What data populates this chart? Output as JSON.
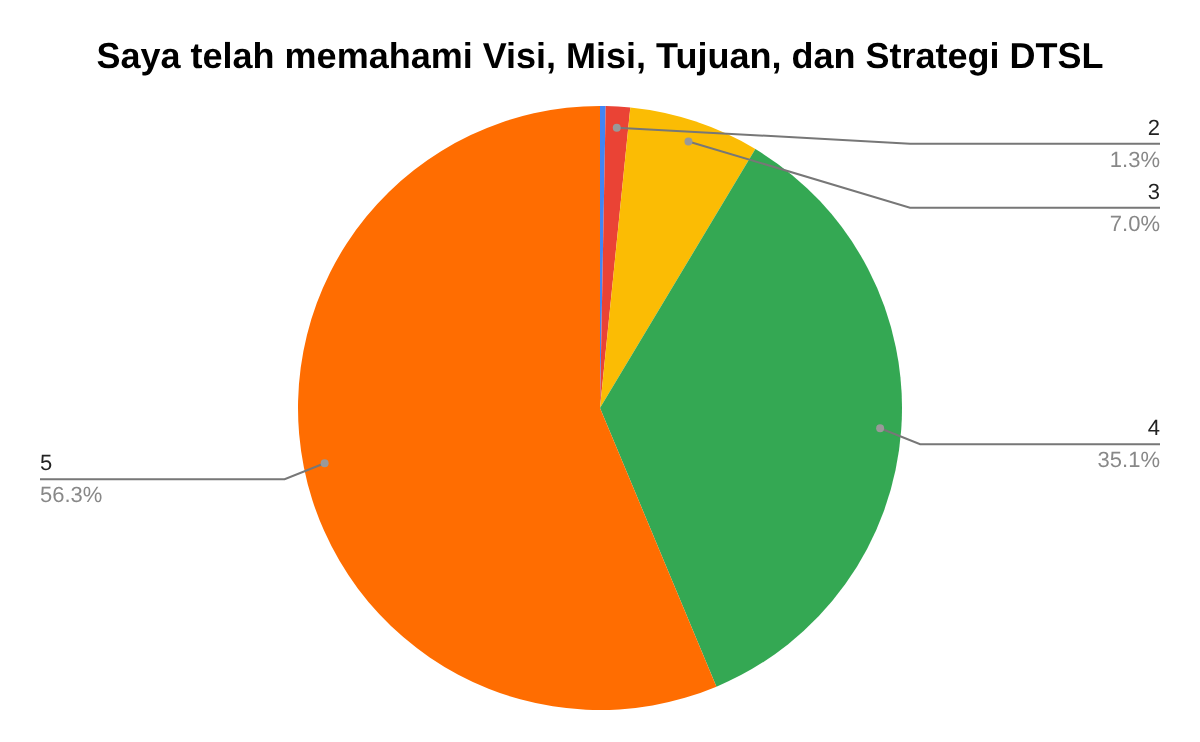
{
  "chart_data": {
    "type": "pie",
    "title": "Saya telah memahami Visi, Misi, Tujuan, dan Strategi DTSL",
    "categories": [
      null,
      "2",
      "3",
      "4",
      "5"
    ],
    "values": [
      0.3,
      1.3,
      7.0,
      35.1,
      56.3
    ],
    "colors": [
      "#4285f4",
      "#ea4335",
      "#fbbc04",
      "#34a853",
      "#ff6d01"
    ],
    "value_labels": [
      null,
      "1.3%",
      "7.0%",
      "35.1%",
      "56.3%"
    ],
    "legend": false
  }
}
